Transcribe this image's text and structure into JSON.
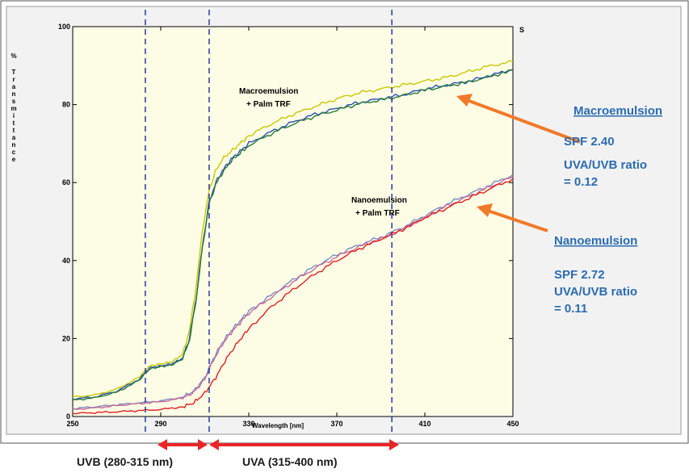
{
  "chart_data": {
    "type": "line",
    "title": "",
    "xlabel": "Wavelength [nm]",
    "ylabel": "% Transmittance",
    "xlim": [
      250,
      450
    ],
    "ylim": [
      0,
      100
    ],
    "x_ticks": [
      "250",
      "290",
      "330",
      "370",
      "410",
      "450"
    ],
    "y_ticks": [
      "0",
      "20",
      "40",
      "60",
      "80",
      "100"
    ],
    "corner_fragment": "S",
    "reference_lines_x": [
      283,
      312,
      395
    ],
    "series": [
      {
        "group": "macro",
        "color": "#c8c800",
        "x": [
          250,
          260,
          270,
          280,
          285,
          290,
          295,
          300,
          303,
          306,
          309,
          312,
          315,
          318,
          322,
          326,
          330,
          340,
          350,
          360,
          370,
          380,
          390,
          400,
          410,
          420,
          430,
          440,
          450
        ],
        "y": [
          5,
          5.5,
          7,
          10,
          13,
          13.5,
          14,
          16,
          22,
          33,
          48,
          58,
          63,
          66,
          68,
          70,
          72,
          75,
          77.5,
          79.5,
          81.5,
          83,
          84,
          85,
          86,
          87,
          88.5,
          90,
          91
        ]
      },
      {
        "group": "macro",
        "color": "#2a4fb0",
        "x": [
          250,
          260,
          270,
          280,
          285,
          290,
          295,
          300,
          303,
          306,
          309,
          312,
          315,
          318,
          322,
          326,
          330,
          340,
          350,
          360,
          370,
          380,
          390,
          400,
          410,
          420,
          430,
          440,
          450
        ],
        "y": [
          4.5,
          5,
          6.5,
          9.5,
          12.5,
          13,
          13.5,
          15,
          20,
          30,
          44,
          55,
          60,
          63,
          66,
          68,
          70,
          73,
          75.5,
          77.5,
          79,
          80.5,
          81.5,
          82.5,
          84,
          85,
          86,
          87.5,
          89
        ]
      },
      {
        "group": "macro",
        "color": "#2c7a3c",
        "x": [
          250,
          260,
          270,
          280,
          285,
          290,
          295,
          300,
          303,
          306,
          309,
          312,
          315,
          318,
          322,
          326,
          330,
          340,
          350,
          360,
          370,
          380,
          390,
          400,
          410,
          420,
          430,
          440,
          450
        ],
        "y": [
          4.2,
          4.8,
          6.2,
          9.2,
          12.2,
          12.8,
          13.2,
          14.8,
          19.5,
          29.5,
          43.5,
          54.5,
          59.5,
          62.5,
          65.5,
          67.5,
          69.5,
          72.5,
          75,
          77,
          78.6,
          80.2,
          81.2,
          82.3,
          83.7,
          84.8,
          85.8,
          87.3,
          88.8
        ]
      },
      {
        "group": "nano",
        "color": "#7a8cc0",
        "x": [
          250,
          260,
          270,
          280,
          290,
          300,
          305,
          310,
          314,
          318,
          322,
          326,
          330,
          340,
          350,
          360,
          370,
          380,
          390,
          400,
          410,
          420,
          430,
          440,
          450
        ],
        "y": [
          2,
          2.5,
          3,
          3.5,
          4,
          5,
          6.5,
          10,
          15,
          19,
          22,
          24.5,
          27,
          31,
          35,
          38.5,
          41.5,
          44,
          46,
          48.5,
          51.5,
          54.5,
          57,
          59.5,
          62
        ]
      },
      {
        "group": "nano",
        "color": "#c86a9a",
        "x": [
          250,
          260,
          270,
          280,
          290,
          300,
          305,
          310,
          314,
          318,
          322,
          326,
          330,
          340,
          350,
          360,
          370,
          380,
          390,
          400,
          410,
          420,
          430,
          440,
          450
        ],
        "y": [
          1.8,
          2.2,
          2.8,
          3.3,
          3.8,
          4.7,
          6.2,
          9.5,
          14.5,
          18.5,
          21.5,
          24,
          26.5,
          30.5,
          34.5,
          38,
          41,
          43.5,
          45.5,
          48,
          51,
          54,
          56.5,
          59,
          61.5
        ]
      },
      {
        "group": "nano",
        "color": "#e02020",
        "x": [
          250,
          260,
          270,
          280,
          290,
          300,
          305,
          310,
          315,
          320,
          325,
          330,
          340,
          350,
          360,
          370,
          380,
          390,
          400,
          410,
          420,
          430,
          440,
          450
        ],
        "y": [
          0.8,
          1,
          1.2,
          1.5,
          1.8,
          2.5,
          3.5,
          6,
          10,
          15,
          19,
          22.5,
          28,
          32.5,
          36.5,
          40,
          43,
          45.5,
          48,
          51,
          53.5,
          56,
          58.5,
          61
        ]
      }
    ]
  },
  "annotations": {
    "macro_curve_label_1": "Macroemulsion",
    "macro_curve_label_2": "+ Palm TRF",
    "nano_curve_label_1": "Nanoemulsion",
    "nano_curve_label_2": "+ Palm TRF"
  },
  "side_panel": {
    "macro_title": "Macroemulsion",
    "macro_spf": "SPF 2.40",
    "macro_ratio_1": "UVA/UVB ratio",
    "macro_ratio_2": "= 0.12",
    "nano_title": "Nanoemulsion",
    "nano_spf": "SPF 2.72",
    "nano_ratio_1": "UVA/UVB ratio",
    "nano_ratio_2": "= 0.11"
  },
  "bands": {
    "uvb_label": "UVB (280-315 nm)",
    "uva_label": "UVA (315-400 nm)"
  },
  "colors": {
    "plot_bg": "#fdfde6",
    "accent_text": "#2b6cb0",
    "arrow_orange": "#f07a2a",
    "arrow_red": "#e8262a",
    "guide_blue": "#2a3aa0"
  }
}
